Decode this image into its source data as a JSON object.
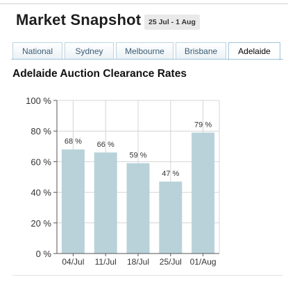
{
  "header": {
    "title": "Market Snapshot",
    "date_range": "25 Jul - 1 Aug"
  },
  "tabs": [
    {
      "label": "National",
      "active": false
    },
    {
      "label": "Sydney",
      "active": false
    },
    {
      "label": "Melbourne",
      "active": false
    },
    {
      "label": "Brisbane",
      "active": false
    },
    {
      "label": "Adelaide",
      "active": true
    }
  ],
  "section": {
    "title": "Adelaide Auction Clearance Rates"
  },
  "colors": {
    "bar": "#b9d2da",
    "grid": "#d4d4d4",
    "axis": "#555555",
    "active_tab_border": "#9ec4d6"
  },
  "chart_data": {
    "type": "bar",
    "title": "",
    "xlabel": "",
    "ylabel": "",
    "categories": [
      "04/Jul",
      "11/Jul",
      "18/Jul",
      "25/Jul",
      "01/Aug"
    ],
    "values": [
      68,
      66,
      59,
      47,
      79
    ],
    "value_labels": [
      "68 %",
      "66 %",
      "59 %",
      "47 %",
      "79 %"
    ],
    "ylim": [
      0,
      100
    ],
    "y_ticks": [
      0,
      20,
      40,
      60,
      80,
      100
    ],
    "y_tick_labels": [
      "0 %",
      "20 %",
      "40 %",
      "60 %",
      "80 %",
      "100 %"
    ],
    "grid": true,
    "legend": "none"
  }
}
